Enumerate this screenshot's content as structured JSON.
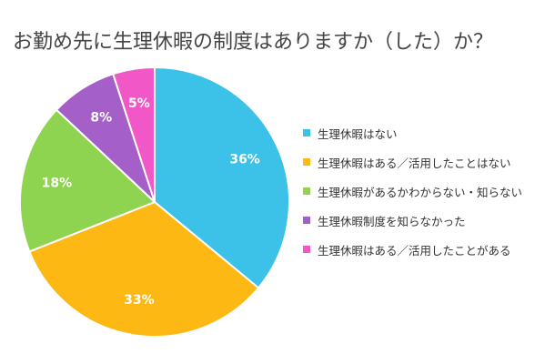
{
  "chart_data": {
    "type": "pie",
    "title": "お勤め先に生理休暇の制度はありますか（した）か？",
    "start_angle_deg": 0,
    "direction": "clockwise",
    "legend_position": "right",
    "slices": [
      {
        "label": "生理休暇はない",
        "value": 36,
        "display": "36%",
        "color": "#3cc2e8"
      },
      {
        "label": "生理休暇はある／活用したことはない",
        "value": 33,
        "display": "33%",
        "color": "#fdb813"
      },
      {
        "label": "生理休暇があるかわからない・知らない",
        "value": 18,
        "display": "18%",
        "color": "#8fd450"
      },
      {
        "label": "生理休暇制度を知らなかった",
        "value": 8,
        "display": "8%",
        "color": "#a55fc9"
      },
      {
        "label": "生理休暇はある／活用したことがある",
        "value": 5,
        "display": "5%",
        "color": "#f257c8"
      }
    ]
  }
}
